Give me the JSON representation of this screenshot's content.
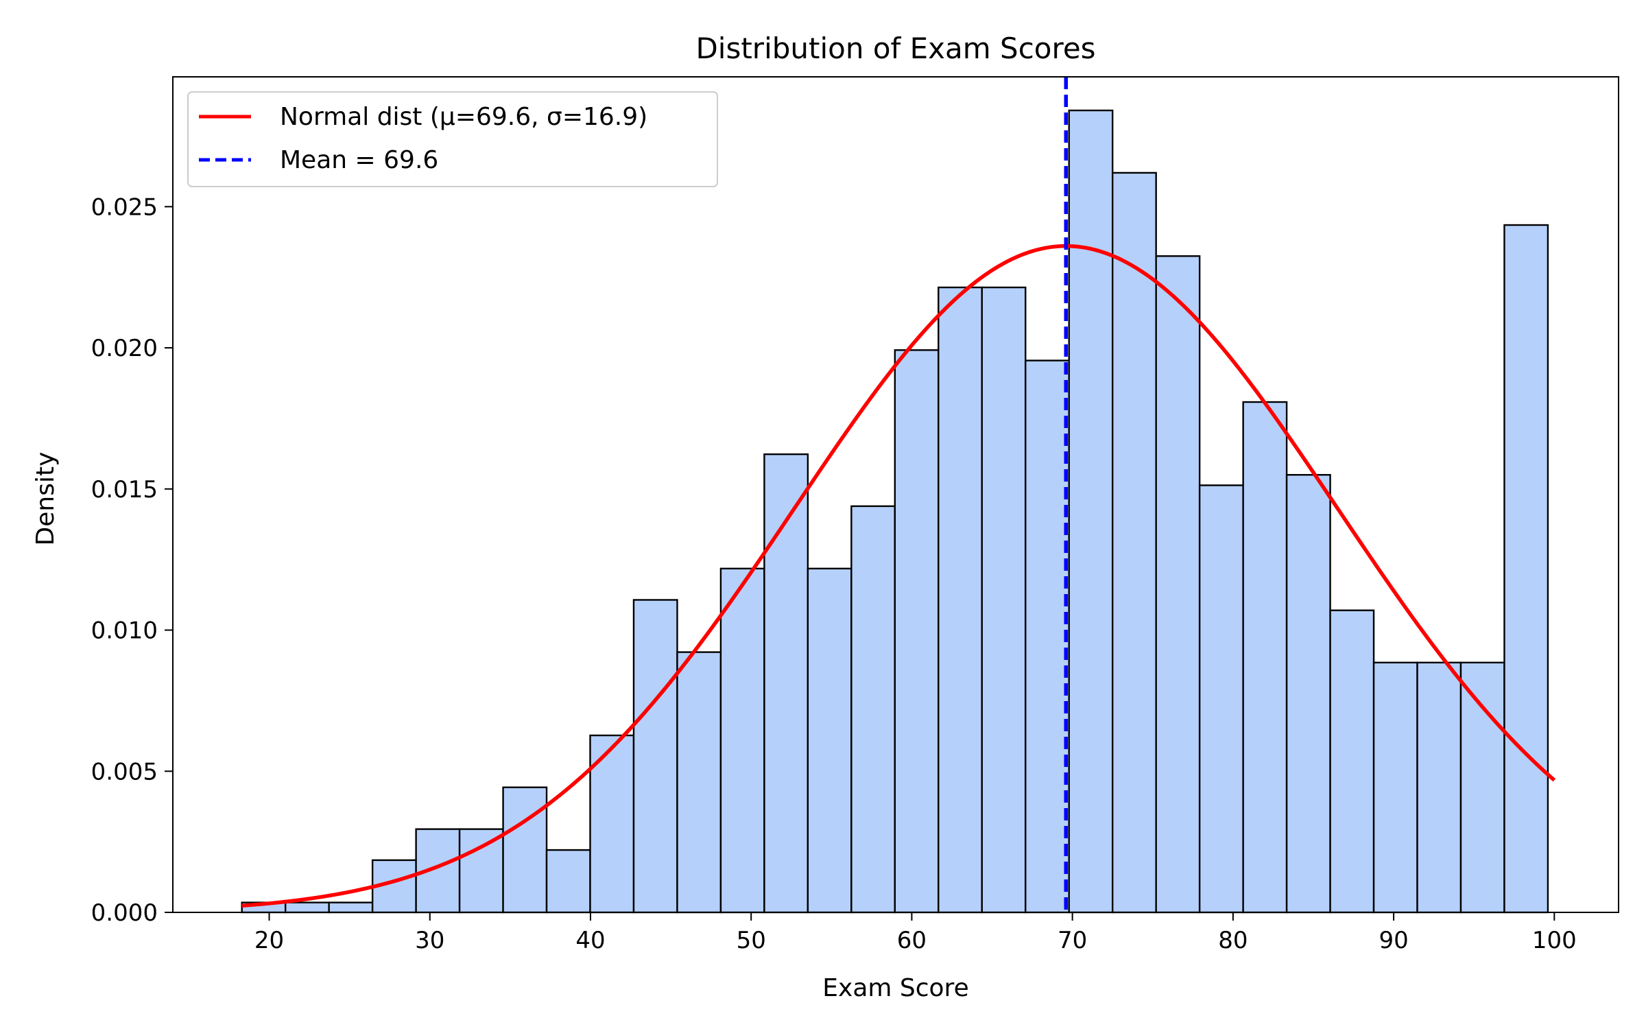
{
  "chart_data": {
    "type": "bar",
    "title": "Distribution of Exam Scores",
    "xlabel": "Exam Score",
    "ylabel": "Density",
    "xlim": [
      14,
      104
    ],
    "ylim": [
      0,
      0.0296
    ],
    "xticks": [
      20,
      30,
      40,
      50,
      60,
      70,
      80,
      90,
      100
    ],
    "yticks": [
      0.0,
      0.005,
      0.01,
      0.015,
      0.02,
      0.025
    ],
    "ytick_labels": [
      "0.000",
      "0.005",
      "0.010",
      "0.015",
      "0.020",
      "0.025"
    ],
    "grid": false,
    "legend_position": "top-left",
    "histogram": {
      "bin_start": 18.3,
      "bin_width": 2.71,
      "density": [
        0.00035,
        0.00035,
        0.00035,
        0.00185,
        0.00295,
        0.00295,
        0.00443,
        0.00221,
        0.00627,
        0.01107,
        0.00922,
        0.01218,
        0.01623,
        0.01218,
        0.01439,
        0.01992,
        0.02214,
        0.02214,
        0.01955,
        0.02841,
        0.0262,
        0.02325,
        0.01513,
        0.01808,
        0.0155,
        0.0107,
        0.00885,
        0.00885,
        0.00885,
        0.02435
      ],
      "color": "#b5d0fa",
      "edge_color": "#000000"
    },
    "series": [
      {
        "name": "Normal dist (μ=69.6, σ=16.9)",
        "type": "line",
        "mu": 69.6,
        "sigma": 16.9,
        "x_range": [
          18.3,
          100
        ],
        "color": "#ff0000",
        "style": "solid"
      },
      {
        "name": "Mean = 69.6",
        "type": "vline",
        "x": 69.6,
        "color": "#0000ff",
        "style": "dashed"
      }
    ]
  }
}
